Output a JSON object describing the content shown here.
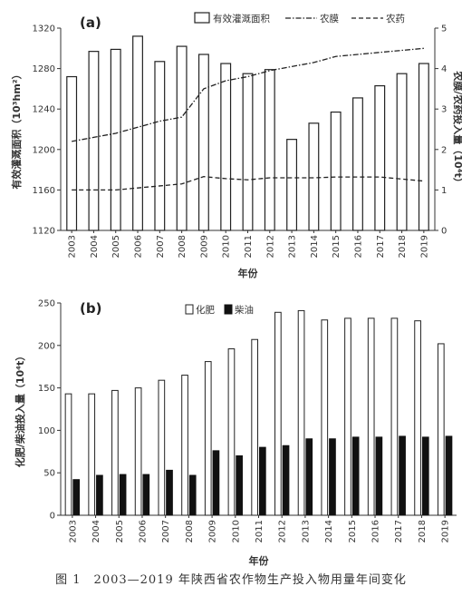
{
  "chart_data": [
    {
      "panel_label": "(a)",
      "type": "bar",
      "categories": [
        "2003",
        "2004",
        "2005",
        "2006",
        "2007",
        "2008",
        "2009",
        "2010",
        "2011",
        "2012",
        "2013",
        "2014",
        "2015",
        "2016",
        "2017",
        "2018",
        "2019"
      ],
      "xlabel": "年份",
      "ylabel": "有效灌溉面积（10³hm²）",
      "ylabel2": "农膜/农药投入量（10⁴t）",
      "ylim": [
        1120,
        1320
      ],
      "yticks": [
        1120,
        1160,
        1200,
        1240,
        1280,
        1320
      ],
      "ylim2": [
        0,
        5
      ],
      "yticks2": [
        0,
        1,
        2,
        3,
        4,
        5
      ],
      "legend": {
        "placement": "top-right"
      },
      "series": [
        {
          "name": "有效灌溉面积",
          "kind": "bar",
          "axis": "left",
          "color": "#ffffff",
          "values": [
            1272,
            1297,
            1299,
            1312,
            1287,
            1302,
            1294,
            1285,
            1275,
            1279,
            1210,
            1226,
            1237,
            1251,
            1263,
            1275,
            1285
          ]
        },
        {
          "name": "农膜",
          "kind": "line",
          "axis": "right",
          "style": "dash-dot",
          "color": "#222222",
          "values": [
            2.2,
            2.3,
            2.4,
            2.55,
            2.7,
            2.8,
            3.5,
            3.7,
            3.8,
            3.95,
            4.05,
            4.15,
            4.3,
            4.35,
            4.4,
            4.45,
            4.5
          ]
        },
        {
          "name": "农药",
          "kind": "line",
          "axis": "right",
          "style": "dashed",
          "color": "#222222",
          "values": [
            1.0,
            1.0,
            1.0,
            1.05,
            1.1,
            1.15,
            1.33,
            1.28,
            1.25,
            1.3,
            1.3,
            1.3,
            1.32,
            1.32,
            1.32,
            1.27,
            1.22
          ]
        }
      ]
    },
    {
      "panel_label": "(b)",
      "type": "bar",
      "categories": [
        "2003",
        "2004",
        "2005",
        "2006",
        "2007",
        "2008",
        "2009",
        "2010",
        "2011",
        "2012",
        "2013",
        "2014",
        "2015",
        "2016",
        "2017",
        "2018",
        "2019"
      ],
      "xlabel": "年份",
      "ylabel": "化肥/柴油投入量（10⁴t）",
      "ylim": [
        0,
        250
      ],
      "yticks": [
        0,
        50,
        100,
        150,
        200,
        250
      ],
      "legend": {
        "placement": "top-center"
      },
      "series": [
        {
          "name": "化肥",
          "color": "#ffffff",
          "values": [
            143,
            143,
            147,
            150,
            159,
            165,
            181,
            196,
            207,
            239,
            241,
            230,
            232,
            232,
            232,
            229,
            202
          ]
        },
        {
          "name": "柴油",
          "color": "#111111",
          "values": [
            42,
            47,
            48,
            48,
            53,
            47,
            76,
            70,
            80,
            82,
            90,
            90,
            92,
            92,
            93,
            92,
            93
          ]
        }
      ]
    }
  ],
  "caption": "图 1　2003—2019 年陕西省农作物生产投入物用量年间变化"
}
